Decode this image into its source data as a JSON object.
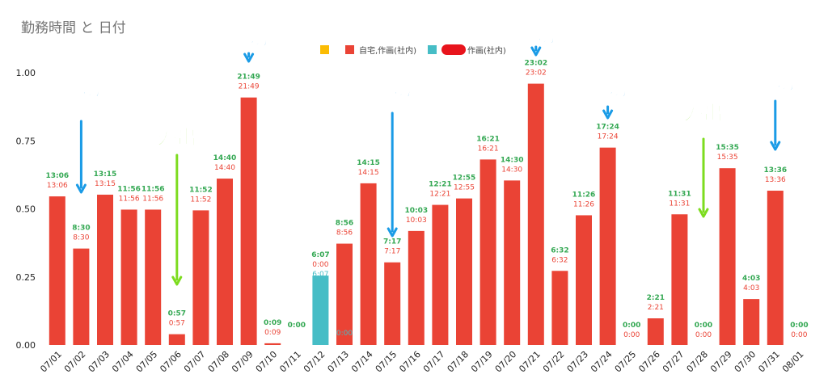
{
  "chart_data": {
    "type": "bar",
    "title": "勤務時間 と 日付",
    "ylim": [
      0,
      1
    ],
    "yticks": [
      "0.00",
      "0.25",
      "0.50",
      "0.75",
      "1.00"
    ],
    "categories": [
      "07/01",
      "07/02",
      "07/03",
      "07/04",
      "07/05",
      "07/06",
      "07/07",
      "07/08",
      "07/09",
      "07/10",
      "07/11",
      "07/12",
      "07/13",
      "07/14",
      "07/15",
      "07/16",
      "07/17",
      "07/18",
      "07/19",
      "07/20",
      "07/21",
      "07/22",
      "07/23",
      "07/24",
      "07/25",
      "07/26",
      "07/27",
      "07/28",
      "07/29",
      "07/30",
      "07/31",
      "08/01"
    ],
    "totals": [
      "13:06",
      "8:30",
      "13:15",
      "11:56",
      "11:56",
      "0:57",
      "11:52",
      "14:40",
      "21:49",
      "0:09",
      "0:00",
      "6:07",
      "8:56",
      "14:15",
      "7:17",
      "10:03",
      "12:21",
      "12:55",
      "16:21",
      "14:30",
      "23:02",
      "6:32",
      "11:26",
      "17:24",
      "0:00",
      "2:21",
      "11:31",
      "0:00",
      "15:35",
      "4:03",
      "13:36",
      "0:00"
    ],
    "series": [
      {
        "name": "",
        "color": "#fbbc04",
        "values": [
          0,
          0,
          0,
          0,
          0,
          0,
          0,
          0,
          0,
          0,
          0,
          0,
          0,
          0,
          0,
          0,
          0,
          0,
          0,
          0,
          0,
          0,
          0,
          0,
          0,
          0,
          0,
          0,
          0,
          0,
          0,
          0
        ]
      },
      {
        "name": "自宅,作画(社内)",
        "color": "#ea4335",
        "values": [
          0.5458,
          0.3542,
          0.5521,
          0.4972,
          0.4972,
          0.0396,
          0.4944,
          0.6111,
          0.909,
          0.0063,
          0,
          0,
          0.3722,
          0.5938,
          0.3035,
          0.4188,
          0.5146,
          0.5382,
          0.6813,
          0.6042,
          0.9597,
          0.2722,
          0.4764,
          0.725,
          0,
          0.0979,
          0.4799,
          0,
          0.6493,
          0.1688,
          0.5667,
          0
        ],
        "labels": [
          "13:06",
          "8:30",
          "13:15",
          "11:56",
          "11:56",
          "0:57",
          "11:52",
          "14:40",
          "21:49",
          "0:09",
          "",
          "0:00",
          "8:56",
          "14:15",
          "7:17",
          "10:03",
          "12:21",
          "12:55",
          "16:21",
          "14:30",
          "23:02",
          "6:32",
          "11:26",
          "17:24",
          "0:00",
          "2:21",
          "11:31",
          "0:00",
          "15:35",
          "4:03",
          "13:36",
          "0:00"
        ]
      },
      {
        "name": "作画(社内)",
        "color": "#46bdc6",
        "values": [
          0,
          0,
          0,
          0,
          0,
          0,
          0,
          0,
          0,
          0,
          0,
          0.2549,
          0,
          0,
          0,
          0,
          0,
          0,
          0,
          0,
          0,
          0,
          0,
          0,
          0,
          0,
          0,
          0,
          0,
          0,
          0,
          0
        ],
        "labels": [
          "",
          "",
          "",
          "",
          "",
          "",
          "",
          "",
          "",
          "",
          "",
          "6:07",
          "0:00",
          "",
          "",
          "",
          "",
          "",
          "",
          "",
          "",
          "",
          "",
          "",
          "",
          "",
          "",
          "",
          "",
          "",
          "",
          ""
        ]
      }
    ],
    "annotations": [
      {
        "text": "締切",
        "color": "#1a9be6",
        "category": "07/02"
      },
      {
        "text": "外出",
        "color": "#7ddc1f",
        "category": "07/06"
      },
      {
        "text": "締切",
        "color": "#1a9be6",
        "category": "07/09"
      },
      {
        "text": "締切",
        "color": "#1a9be6",
        "category": "07/15"
      },
      {
        "text": "締切",
        "color": "#1a9be6",
        "category": "07/21"
      },
      {
        "text": "締切",
        "color": "#1a9be6",
        "category": "07/24"
      },
      {
        "text": "外出",
        "color": "#7ddc1f",
        "category": "07/28"
      },
      {
        "text": "締切",
        "color": "#1a9be6",
        "category": "07/31"
      }
    ],
    "colors": {
      "total_label": "#34a853",
      "bar_label": "#ea4335",
      "teal_label": "#46bdc6",
      "axis_text": "#222222"
    }
  }
}
